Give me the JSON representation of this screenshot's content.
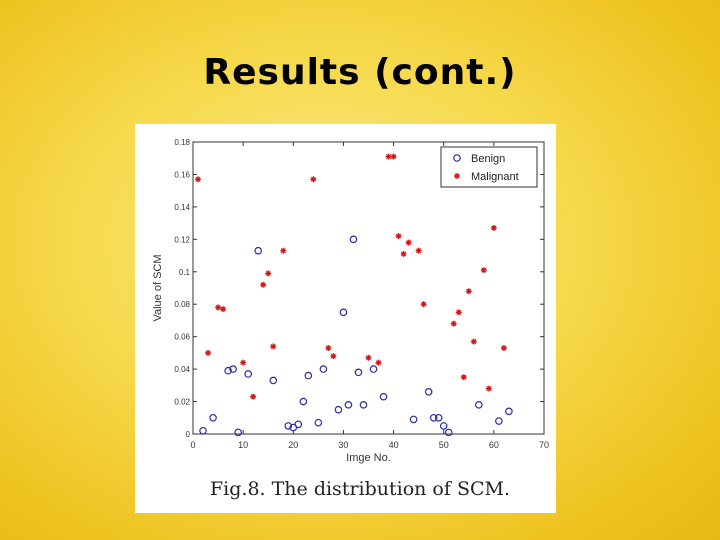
{
  "slide": {
    "title": "Results (cont.)",
    "caption": "Fig.8. The distribution of SCM."
  },
  "colors": {
    "benign": "#2a2aa8",
    "malignant": "#d01818"
  },
  "chart_data": {
    "type": "scatter",
    "xlabel": "Imge No.",
    "ylabel": "Value of SCM",
    "xlim": [
      0,
      70
    ],
    "ylim": [
      0,
      0.18
    ],
    "xticks": [
      0,
      10,
      20,
      30,
      40,
      50,
      60,
      70
    ],
    "yticks": [
      0,
      0.02,
      0.04,
      0.06,
      0.08,
      0.1,
      0.12,
      0.14,
      0.16,
      0.18
    ],
    "ytick_labels": [
      "0",
      "0.02",
      "0.04",
      "0.06",
      "0.08",
      "0.1",
      "0.12",
      "0.14",
      "0.16",
      "0.18"
    ],
    "grid": false,
    "legend_position": "top-right",
    "series": [
      {
        "name": "Benign",
        "marker": "circle",
        "points": [
          [
            2,
            0.002
          ],
          [
            4,
            0.01
          ],
          [
            7,
            0.039
          ],
          [
            8,
            0.04
          ],
          [
            9,
            0.001
          ],
          [
            11,
            0.037
          ],
          [
            13,
            0.113
          ],
          [
            16,
            0.033
          ],
          [
            19,
            0.005
          ],
          [
            20,
            0.004
          ],
          [
            21,
            0.006
          ],
          [
            22,
            0.02
          ],
          [
            23,
            0.036
          ],
          [
            25,
            0.007
          ],
          [
            26,
            0.04
          ],
          [
            29,
            0.015
          ],
          [
            30,
            0.075
          ],
          [
            31,
            0.018
          ],
          [
            32,
            0.12
          ],
          [
            33,
            0.038
          ],
          [
            34,
            0.018
          ],
          [
            36,
            0.04
          ],
          [
            38,
            0.023
          ],
          [
            44,
            0.009
          ],
          [
            47,
            0.026
          ],
          [
            48,
            0.01
          ],
          [
            49,
            0.01
          ],
          [
            50,
            0.005
          ],
          [
            51,
            0.001
          ],
          [
            57,
            0.018
          ],
          [
            61,
            0.008
          ],
          [
            63,
            0.014
          ]
        ]
      },
      {
        "name": "Malignant",
        "marker": "star",
        "points": [
          [
            1,
            0.157
          ],
          [
            3,
            0.05
          ],
          [
            5,
            0.078
          ],
          [
            6,
            0.077
          ],
          [
            10,
            0.044
          ],
          [
            12,
            0.023
          ],
          [
            14,
            0.092
          ],
          [
            15,
            0.099
          ],
          [
            16,
            0.054
          ],
          [
            18,
            0.113
          ],
          [
            24,
            0.157
          ],
          [
            27,
            0.053
          ],
          [
            28,
            0.048
          ],
          [
            35,
            0.047
          ],
          [
            37,
            0.044
          ],
          [
            39,
            0.171
          ],
          [
            40,
            0.171
          ],
          [
            41,
            0.122
          ],
          [
            42,
            0.111
          ],
          [
            43,
            0.118
          ],
          [
            45,
            0.113
          ],
          [
            46,
            0.08
          ],
          [
            52,
            0.068
          ],
          [
            53,
            0.075
          ],
          [
            54,
            0.035
          ],
          [
            55,
            0.088
          ],
          [
            56,
            0.057
          ],
          [
            58,
            0.101
          ],
          [
            59,
            0.028
          ],
          [
            60,
            0.127
          ],
          [
            62,
            0.053
          ]
        ]
      }
    ]
  }
}
